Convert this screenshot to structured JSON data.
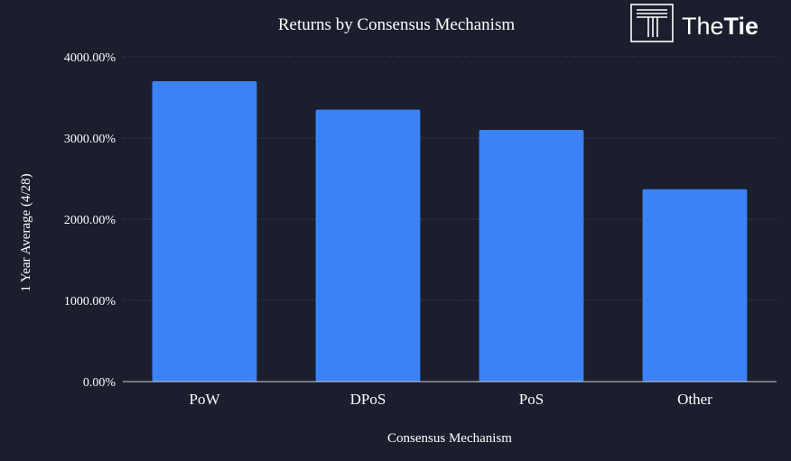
{
  "brand": {
    "name_light": "The",
    "name_bold": "Tie",
    "logo_icon": "thetie-logo-icon"
  },
  "colors": {
    "background": "#1b1e2d",
    "bar": "#3b82f6",
    "text": "#ffffff",
    "grid": "#4a4e5e",
    "axis": "#d0d0d0"
  },
  "chart_data": {
    "type": "bar",
    "title": "Returns by Consensus Mechanism",
    "xlabel": "Consensus Mechanism",
    "ylabel": "1 Year Average (4/28)",
    "categories": [
      "PoW",
      "DPoS",
      "PoS",
      "Other"
    ],
    "values": [
      3700,
      3350,
      3100,
      2370
    ],
    "ylim": [
      0,
      4000
    ],
    "yticks": [
      0,
      1000,
      2000,
      3000,
      4000
    ],
    "ytick_labels": [
      "0.00%",
      "1000.00%",
      "2000.00%",
      "3000.00%",
      "4000.00%"
    ],
    "grid": true,
    "legend": "none"
  }
}
